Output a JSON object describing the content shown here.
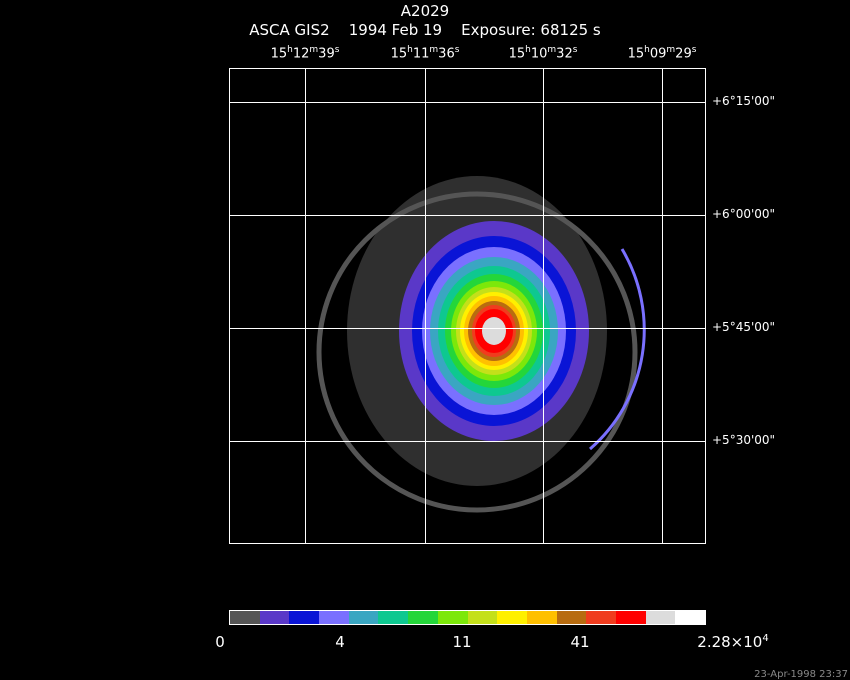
{
  "title": "A2029",
  "subtitle": {
    "instrument": "ASCA GIS2",
    "date": "1994 Feb 19",
    "exposure": "Exposure: 68125 s"
  },
  "ra_ticks": [
    {
      "h": "15",
      "hs": "h",
      "m": "12",
      "ms": "m",
      "s": "39",
      "ss": "s"
    },
    {
      "h": "15",
      "hs": "h",
      "m": "11",
      "ms": "m",
      "s": "36",
      "ss": "s"
    },
    {
      "h": "15",
      "hs": "h",
      "m": "10",
      "ms": "m",
      "s": "32",
      "ss": "s"
    },
    {
      "h": "15",
      "hs": "h",
      "m": "09",
      "ms": "m",
      "s": "29",
      "ss": "s"
    }
  ],
  "dec_ticks": [
    "+6°15'00\"",
    "+6°00'00\"",
    "+5°45'00\"",
    "+5°30'00\""
  ],
  "colorbar": {
    "colors": [
      "#555555",
      "#5a38c8",
      "#0a14d6",
      "#7a70ff",
      "#3aa6c2",
      "#0ec890",
      "#24d63a",
      "#7ce80a",
      "#c4e01a",
      "#fff000",
      "#ffc000",
      "#b86c10",
      "#f03c1e",
      "#ff0000",
      "#dcdcdc",
      "#ffffff"
    ],
    "labels": [
      "0",
      "4",
      "11",
      "41",
      "2.28×10"
    ],
    "label_exp": "4"
  },
  "timestamp": "23-Apr-1998 23:37"
}
